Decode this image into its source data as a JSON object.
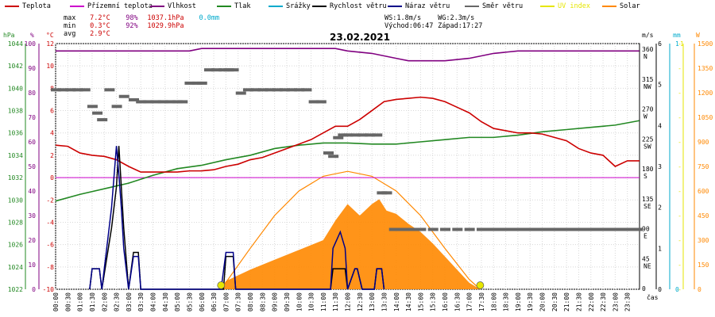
{
  "legend": [
    {
      "label": "Teplota",
      "color": "#cc0000"
    },
    {
      "label": "Přízemní teplota",
      "color": "#cc00cc"
    },
    {
      "label": "Vlhkost",
      "color": "#800080"
    },
    {
      "label": "Tlak",
      "color": "#228822"
    },
    {
      "label": "Srážky",
      "color": "#00aacc"
    },
    {
      "label": "Rychlost větru",
      "color": "#000000"
    },
    {
      "label": "Náraz větru",
      "color": "#000088"
    },
    {
      "label": "Směr větru",
      "color": "#666666"
    },
    {
      "label": "UV index",
      "color": "#e6e600"
    },
    {
      "label": "Solar",
      "color": "#ff8800"
    }
  ],
  "stats": {
    "max_label": "max",
    "max_temp": "7.2°C",
    "max_hum": "98%",
    "max_press": "1037.1hPa",
    "max_rain": "0.0mm",
    "min_label": "min",
    "min_temp": "0.3°C",
    "min_hum": "92%",
    "min_press": "1029.9hPa",
    "avg_label": "avg",
    "avg_temp": "2.9°C"
  },
  "wind_info": {
    "ws": "WS:1.8m/s",
    "wg": "WG:2.3m/s",
    "sunrise": "Východ:06:47",
    "sunset": "Západ:17:27"
  },
  "date": "23.02.2021",
  "axis_units": {
    "hpa": "hPa",
    "percent": "%",
    "celsius": "°C",
    "ms": "m/s",
    "mm": "mm",
    "w": "W",
    "time": "čas"
  },
  "colors": {
    "temp": "#cc0000",
    "ground_temp": "#cc00cc",
    "humidity": "#800080",
    "pressure": "#228822",
    "rain": "#00aacc",
    "wind": "#000000",
    "gust": "#000088",
    "direction": "#666666",
    "uv": "#e6e600",
    "solar": "#ff8800"
  },
  "chart_data": {
    "type": "line",
    "title": "23.02.2021",
    "grid": true,
    "x_unit": "čas",
    "x_ticks": [
      "00:00",
      "00:30",
      "01:00",
      "01:30",
      "02:00",
      "02:30",
      "03:00",
      "03:30",
      "04:00",
      "04:30",
      "05:00",
      "05:30",
      "06:00",
      "06:30",
      "07:00",
      "07:30",
      "08:00",
      "08:30",
      "09:00",
      "09:30",
      "10:00",
      "10:30",
      "11:00",
      "11:30",
      "12:00",
      "12:30",
      "13:00",
      "13:30",
      "14:00",
      "14:30",
      "15:00",
      "15:30",
      "16:00",
      "16:30",
      "17:00",
      "17:30",
      "18:00",
      "18:30",
      "19:00",
      "19:30",
      "20:00",
      "20:30",
      "21:00",
      "21:30",
      "22:00",
      "22:30",
      "23:00",
      "23:30"
    ],
    "axes": {
      "pressure": {
        "unit": "hPa",
        "ylim": [
          1022,
          1044
        ],
        "ticks": [
          "1044",
          "1042",
          "1040",
          "1038",
          "1036",
          "1034",
          "1032",
          "1030",
          "1028",
          "1026",
          "1024",
          "1022"
        ]
      },
      "humidity": {
        "unit": "%",
        "ylim": [
          0,
          100
        ],
        "ticks": [
          "100",
          "90",
          "80",
          "70",
          "60",
          "50",
          "40",
          "30",
          "20",
          "10",
          "0"
        ]
      },
      "temperature": {
        "unit": "°C",
        "ylim": [
          -10,
          12
        ],
        "ticks": [
          "12",
          "10",
          "8",
          "6",
          "4",
          "2",
          "0",
          "-2",
          "-4",
          "-6",
          "-8",
          "-10"
        ]
      },
      "direction": {
        "unit": "",
        "ticks": [
          {
            "deg": "360",
            "dir": "N"
          },
          {
            "deg": "315",
            "dir": "NW"
          },
          {
            "deg": "270",
            "dir": "W"
          },
          {
            "deg": "225",
            "dir": "SW"
          },
          {
            "deg": "180",
            "dir": "S"
          },
          {
            "deg": "135",
            "dir": "SE"
          },
          {
            "deg": "90",
            "dir": "E"
          },
          {
            "deg": "45",
            "dir": "NE"
          },
          {
            "deg": "0",
            "dir": ""
          }
        ]
      },
      "wind": {
        "unit": "m/s",
        "ylim": [
          0,
          6
        ],
        "ticks": [
          "6",
          "5",
          "4",
          "3",
          "2",
          "1",
          "0"
        ]
      },
      "rain": {
        "unit": "mm",
        "ylim": [
          0,
          1
        ],
        "ticks": [
          "1",
          "0"
        ]
      },
      "uv": {
        "unit": "",
        "ylim": [
          0,
          1
        ],
        "ticks": [
          "1",
          "0"
        ]
      },
      "solar": {
        "unit": "W",
        "ylim": [
          0,
          1500
        ],
        "ticks": [
          "1500",
          "1350",
          "1200",
          "1050",
          "900",
          "750",
          "600",
          "450",
          "300",
          "150",
          "0"
        ]
      }
    },
    "series": [
      {
        "name": "Teplota",
        "axis": "temperature",
        "x": [
          0,
          0.5,
          1,
          1.5,
          2,
          2.5,
          3,
          3.5,
          4,
          4.5,
          5,
          5.5,
          6,
          6.5,
          7,
          7.5,
          8,
          8.5,
          9,
          9.5,
          10,
          10.5,
          11,
          11.5,
          12,
          12.5,
          13,
          13.5,
          14,
          14.5,
          15,
          15.5,
          16,
          16.5,
          17,
          17.5,
          18,
          18.5,
          19,
          19.5,
          20,
          20.5,
          21,
          21.5,
          22,
          22.5,
          23,
          23.5,
          24
        ],
        "y": [
          2.9,
          2.8,
          2.2,
          2.0,
          1.9,
          1.6,
          1.0,
          0.5,
          0.5,
          0.5,
          0.5,
          0.6,
          0.6,
          0.7,
          1.0,
          1.2,
          1.6,
          1.8,
          2.2,
          2.6,
          3.0,
          3.4,
          4.0,
          4.6,
          4.6,
          5.2,
          6.0,
          6.8,
          7.0,
          7.1,
          7.2,
          7.1,
          6.8,
          6.3,
          5.8,
          5.0,
          4.4,
          4.2,
          4.0,
          4.0,
          3.9,
          3.6,
          3.3,
          2.6,
          2.2,
          2.0,
          1.0,
          1.5,
          1.5
        ]
      },
      {
        "name": "Přízemní teplota",
        "axis": "temperature",
        "x": [
          0,
          24
        ],
        "y": [
          0,
          0
        ]
      },
      {
        "name": "Vlhkost",
        "axis": "humidity",
        "x": [
          0,
          4,
          5.5,
          6,
          8,
          10,
          11.5,
          12,
          13,
          14,
          14.5,
          16,
          17,
          18,
          19,
          19.5,
          20,
          23.99
        ],
        "y": [
          97,
          97,
          97,
          98,
          98,
          98,
          98,
          97,
          96,
          94,
          93,
          93,
          94,
          96,
          97,
          97,
          97,
          97
        ]
      },
      {
        "name": "Tlak",
        "axis": "pressure",
        "x": [
          0,
          1,
          2,
          3,
          4,
          5,
          6,
          7,
          8,
          9,
          10,
          11,
          12,
          13,
          14,
          15,
          16,
          17,
          18,
          19,
          20,
          21,
          22,
          23,
          23.99
        ],
        "y": [
          1029.9,
          1030.5,
          1031.0,
          1031.5,
          1032.2,
          1032.8,
          1033.1,
          1033.6,
          1034.0,
          1034.6,
          1034.9,
          1035.1,
          1035.1,
          1035.0,
          1035.0,
          1035.2,
          1035.4,
          1035.6,
          1035.6,
          1035.8,
          1036.1,
          1036.3,
          1036.5,
          1036.7,
          1037.1
        ]
      },
      {
        "name": "Rychlost větru",
        "axis": "wind",
        "x": [
          1.4,
          1.5,
          1.8,
          1.9,
          2.3,
          2.5,
          2.6,
          2.7,
          2.8,
          3.0,
          3.2,
          3.4,
          3.5,
          6.9,
          7.0,
          7.3,
          7.4,
          11.3,
          11.4,
          11.7,
          11.9,
          12.0,
          12.3,
          12.4,
          12.6,
          13.1,
          13.2,
          13.4,
          13.5
        ],
        "y": [
          0,
          0.5,
          0.5,
          0,
          1.5,
          2.5,
          3.5,
          2.5,
          1.5,
          0,
          0.9,
          0.9,
          0,
          0,
          0.8,
          0.8,
          0,
          0,
          0.5,
          0.5,
          0.5,
          0,
          0.5,
          0.5,
          0,
          0,
          0.5,
          0.5,
          0
        ]
      },
      {
        "name": "Náraz větru",
        "axis": "wind",
        "x": [
          1.4,
          1.5,
          1.8,
          1.9,
          2.3,
          2.5,
          2.6,
          2.7,
          2.8,
          3.0,
          3.2,
          3.4,
          3.5,
          6.8,
          7.0,
          7.3,
          7.4,
          11.3,
          11.4,
          11.7,
          11.9,
          12.0,
          12.3,
          12.4,
          12.6,
          13.1,
          13.2,
          13.4,
          13.5
        ],
        "y": [
          0,
          0.5,
          0.5,
          0,
          2.0,
          3.5,
          2.8,
          2.0,
          1.0,
          0,
          0.8,
          0.8,
          0,
          0,
          0.9,
          0.9,
          0,
          0,
          1.0,
          1.4,
          1.0,
          0,
          0.5,
          0.5,
          0,
          0,
          0.5,
          0.5,
          0
        ]
      },
      {
        "name": "Směr větru",
        "axis": "direction",
        "type": "scatter",
        "x": [
          0,
          0.3,
          0.6,
          0.9,
          1.2,
          1.5,
          1.7,
          1.9,
          2.2,
          2.5,
          2.8,
          3.2,
          3.5,
          3.8,
          4.1,
          4.4,
          4.7,
          5.0,
          5.2,
          5.5,
          5.8,
          6.0,
          6.3,
          6.6,
          6.9,
          7.1,
          7.3,
          7.6,
          7.9,
          8.2,
          8.5,
          8.8,
          9.1,
          9.4,
          9.7,
          10.0,
          10.3,
          10.6,
          10.9,
          11.2,
          11.4,
          11.6,
          11.8,
          12.0,
          12.3,
          12.6,
          12.9,
          13.2,
          13.4,
          13.6,
          13.9,
          14.2,
          14.6,
          15.0,
          15.5,
          16.0,
          16.5,
          17.0,
          17.5,
          18.0,
          18.5,
          19.0,
          19.5,
          20.0,
          20.5,
          21.0,
          21.5,
          22.0,
          22.5,
          23.0,
          23.5,
          23.9
        ],
        "y": [
          300,
          300,
          300,
          300,
          300,
          275,
          265,
          255,
          300,
          275,
          290,
          285,
          282,
          282,
          282,
          282,
          282,
          282,
          282,
          310,
          310,
          310,
          330,
          330,
          330,
          330,
          330,
          295,
          300,
          300,
          300,
          300,
          300,
          300,
          300,
          300,
          300,
          282,
          282,
          205,
          200,
          228,
          232,
          232,
          232,
          232,
          232,
          232,
          145,
          145,
          90,
          90,
          90,
          90,
          90,
          90,
          90,
          90,
          90,
          90,
          90,
          90,
          90,
          90,
          90,
          90,
          90,
          90,
          90,
          90,
          90,
          90
        ]
      },
      {
        "name": "UV index",
        "axis": "uv",
        "type": "scatter",
        "x": [
          6.8,
          17.45
        ],
        "y": [
          0,
          0
        ]
      },
      {
        "name": "Solar",
        "axis": "solar",
        "x": [
          6.8,
          7.0,
          8.0,
          9.0,
          10.0,
          11.0,
          11.5,
          12.0,
          12.5,
          13.0,
          13.3,
          13.6,
          14.0,
          14.5,
          15.0,
          15.5,
          16.0,
          16.5,
          17.0,
          17.45
        ],
        "y": [
          0,
          50,
          120,
          180,
          240,
          300,
          420,
          520,
          450,
          520,
          550,
          480,
          460,
          400,
          350,
          280,
          200,
          120,
          40,
          0
        ]
      },
      {
        "name": "Solar max",
        "axis": "solar",
        "x": [
          6.8,
          8,
          9,
          10,
          11,
          12,
          13,
          14,
          15,
          16,
          17,
          17.45
        ],
        "y": [
          0,
          250,
          450,
          600,
          690,
          720,
          690,
          600,
          450,
          250,
          60,
          0
        ]
      }
    ]
  }
}
